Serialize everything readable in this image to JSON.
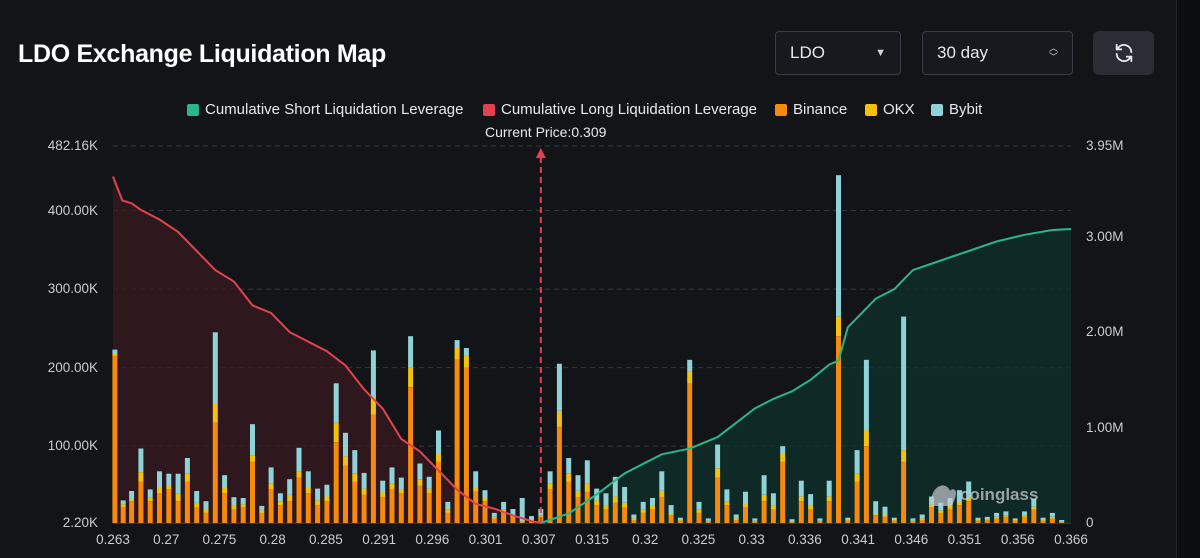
{
  "header": {
    "title": "LDO Exchange Liquidation Map",
    "symbol_select": "LDO",
    "range_select": "30 day"
  },
  "colors": {
    "short_line": "#2bb58a",
    "long_line": "#e2424f",
    "binance": "#f7890c",
    "okx": "#f4c20d",
    "bybit": "#8fd3d8",
    "background": "#121418"
  },
  "icons": {
    "refresh": "refresh-icon",
    "symbol_caret": "chevron-down-icon",
    "range_caret": "up-down-chevrons-icon",
    "watermark": "coinglass-logo"
  },
  "watermark": "coinglass",
  "chart_data": {
    "type": "bar",
    "current_price_label": "Current Price:0.309",
    "current_price": 0.309,
    "legend": [
      {
        "name": "Cumulative Short Liquidation Leverage",
        "color": "#2bb58a"
      },
      {
        "name": "Cumulative Long Liquidation Leverage",
        "color": "#e2424f"
      },
      {
        "name": "Binance",
        "color": "#f7890c"
      },
      {
        "name": "OKX",
        "color": "#f4c20d"
      },
      {
        "name": "Bybit",
        "color": "#8fd3d8"
      }
    ],
    "x_ticks": [
      "0.263",
      "0.27",
      "0.275",
      "0.28",
      "0.285",
      "0.291",
      "0.296",
      "0.301",
      "0.307",
      "0.315",
      "0.32",
      "0.325",
      "0.33",
      "0.336",
      "0.341",
      "0.346",
      "0.351",
      "0.356",
      "0.366"
    ],
    "y_left_ticks": [
      "2.20K",
      "100.00K",
      "200.00K",
      "300.00K",
      "400.00K",
      "482.16K"
    ],
    "y_right_ticks": [
      "0",
      "1.00M",
      "2.00M",
      "3.00M",
      "3.95M"
    ],
    "ylim_left": [
      2200,
      482160
    ],
    "ylim_right": [
      0,
      3950000
    ],
    "x_range": [
      0.263,
      0.366
    ],
    "bars": {
      "x": [
        0.2632,
        0.2641,
        0.265,
        0.266,
        0.267,
        0.268,
        0.269,
        0.27,
        0.271,
        0.272,
        0.273,
        0.274,
        0.275,
        0.276,
        0.277,
        0.278,
        0.279,
        0.28,
        0.281,
        0.282,
        0.283,
        0.284,
        0.285,
        0.286,
        0.287,
        0.288,
        0.289,
        0.29,
        0.291,
        0.292,
        0.293,
        0.294,
        0.295,
        0.296,
        0.297,
        0.298,
        0.299,
        0.3,
        0.301,
        0.302,
        0.303,
        0.304,
        0.305,
        0.306,
        0.307,
        0.308,
        0.309,
        0.31,
        0.311,
        0.312,
        0.313,
        0.314,
        0.315,
        0.316,
        0.317,
        0.318,
        0.319,
        0.32,
        0.321,
        0.322,
        0.323,
        0.324,
        0.325,
        0.326,
        0.327,
        0.328,
        0.329,
        0.33,
        0.331,
        0.332,
        0.333,
        0.334,
        0.335,
        0.336,
        0.337,
        0.338,
        0.339,
        0.34,
        0.341,
        0.342,
        0.343,
        0.344,
        0.345,
        0.346,
        0.347,
        0.348,
        0.349,
        0.35,
        0.351,
        0.352,
        0.353,
        0.354,
        0.355,
        0.356,
        0.357,
        0.358,
        0.359,
        0.36,
        0.361,
        0.362,
        0.363,
        0.364,
        0.365
      ],
      "binance": [
        215000,
        22000,
        30000,
        55000,
        30000,
        40000,
        45000,
        30000,
        55000,
        22000,
        15000,
        130000,
        40000,
        20000,
        22000,
        80000,
        15000,
        45000,
        25000,
        30000,
        60000,
        40000,
        25000,
        30000,
        105000,
        75000,
        55000,
        38000,
        140000,
        35000,
        45000,
        40000,
        175000,
        50000,
        40000,
        80000,
        15000,
        210000,
        200000,
        42000,
        30000,
        8000,
        15000,
        10000,
        3000,
        5000,
        10000,
        45000,
        125000,
        55000,
        35000,
        42000,
        25000,
        20000,
        28000,
        22000,
        6000,
        15000,
        20000,
        35000,
        12000,
        5000,
        180000,
        15000,
        4000,
        60000,
        25000,
        6000,
        22000,
        4000,
        30000,
        20000,
        80000,
        3000,
        30000,
        20000,
        4000,
        30000,
        240000,
        5000,
        55000,
        100000,
        12000,
        10000,
        5000,
        80000,
        4000,
        6000,
        22000,
        15000,
        20000,
        25000,
        30000,
        5000,
        6000,
        8000,
        10000,
        5000,
        10000,
        20000,
        5000,
        8000,
        3000
      ],
      "okx": [
        3000,
        4000,
        3000,
        12000,
        5000,
        8000,
        5000,
        10000,
        10000,
        6000,
        5000,
        25000,
        8000,
        5000,
        4000,
        8000,
        3000,
        8000,
        5000,
        8000,
        8000,
        8000,
        6000,
        6000,
        25000,
        12000,
        10000,
        8000,
        22000,
        6000,
        8000,
        5000,
        25000,
        8000,
        6000,
        10000,
        4000,
        15000,
        15000,
        6000,
        4000,
        2000,
        4000,
        2000,
        1000,
        1000,
        2000,
        8000,
        20000,
        10000,
        8000,
        10000,
        6000,
        5000,
        8000,
        6000,
        2000,
        4000,
        4000,
        8000,
        3000,
        1000,
        15000,
        4000,
        1000,
        12000,
        5000,
        2000,
        5000,
        1000,
        8000,
        5000,
        10000,
        1000,
        6000,
        4000,
        1000,
        6000,
        25000,
        1000,
        10000,
        20000,
        3000,
        3000,
        1000,
        15000,
        1000,
        2000,
        4000,
        3000,
        4000,
        4000,
        5000,
        1000,
        1000,
        2000,
        2000,
        1000,
        2000,
        3000,
        1000,
        2000,
        1000
      ],
      "bybit": [
        5000,
        5000,
        10000,
        30000,
        10000,
        20000,
        15000,
        25000,
        20000,
        15000,
        10000,
        90000,
        15000,
        10000,
        8000,
        40000,
        6000,
        20000,
        10000,
        20000,
        30000,
        20000,
        15000,
        15000,
        50000,
        30000,
        30000,
        20000,
        60000,
        15000,
        20000,
        15000,
        40000,
        20000,
        15000,
        30000,
        10000,
        10000,
        10000,
        20000,
        10000,
        5000,
        10000,
        8000,
        30000,
        5000,
        8000,
        15000,
        60000,
        20000,
        20000,
        30000,
        15000,
        15000,
        25000,
        20000,
        5000,
        10000,
        10000,
        25000,
        10000,
        3000,
        15000,
        10000,
        3000,
        30000,
        15000,
        5000,
        15000,
        3000,
        25000,
        15000,
        10000,
        3000,
        20000,
        15000,
        3000,
        20000,
        180000,
        3000,
        30000,
        90000,
        15000,
        10000,
        3000,
        170000,
        3000,
        5000,
        10000,
        10000,
        10000,
        15000,
        20000,
        3000,
        3000,
        5000,
        5000,
        2000,
        5000,
        10000,
        3000,
        5000,
        2000
      ]
    },
    "long_cumulative": {
      "x": [
        0.263,
        0.264,
        0.265,
        0.266,
        0.268,
        0.27,
        0.272,
        0.274,
        0.276,
        0.278,
        0.28,
        0.282,
        0.284,
        0.286,
        0.288,
        0.29,
        0.292,
        0.294,
        0.296,
        0.298,
        0.3,
        0.302,
        0.304,
        0.306,
        0.308,
        0.309
      ],
      "y": [
        3630000,
        3380000,
        3350000,
        3280000,
        3180000,
        3050000,
        2850000,
        2650000,
        2530000,
        2280000,
        2200000,
        2000000,
        1900000,
        1800000,
        1650000,
        1400000,
        1200000,
        880000,
        750000,
        550000,
        350000,
        200000,
        150000,
        80000,
        20000,
        0
      ]
    },
    "short_cumulative": {
      "x": [
        0.309,
        0.312,
        0.315,
        0.318,
        0.32,
        0.322,
        0.325,
        0.328,
        0.33,
        0.332,
        0.334,
        0.336,
        0.338,
        0.34,
        0.341,
        0.342,
        0.343,
        0.345,
        0.347,
        0.349,
        0.352,
        0.355,
        0.358,
        0.361,
        0.364,
        0.366
      ],
      "y": [
        0,
        100000,
        300000,
        520000,
        620000,
        720000,
        780000,
        900000,
        1050000,
        1200000,
        1300000,
        1380000,
        1500000,
        1660000,
        1700000,
        2050000,
        2150000,
        2350000,
        2450000,
        2650000,
        2750000,
        2850000,
        2950000,
        3020000,
        3070000,
        3080000
      ]
    }
  }
}
